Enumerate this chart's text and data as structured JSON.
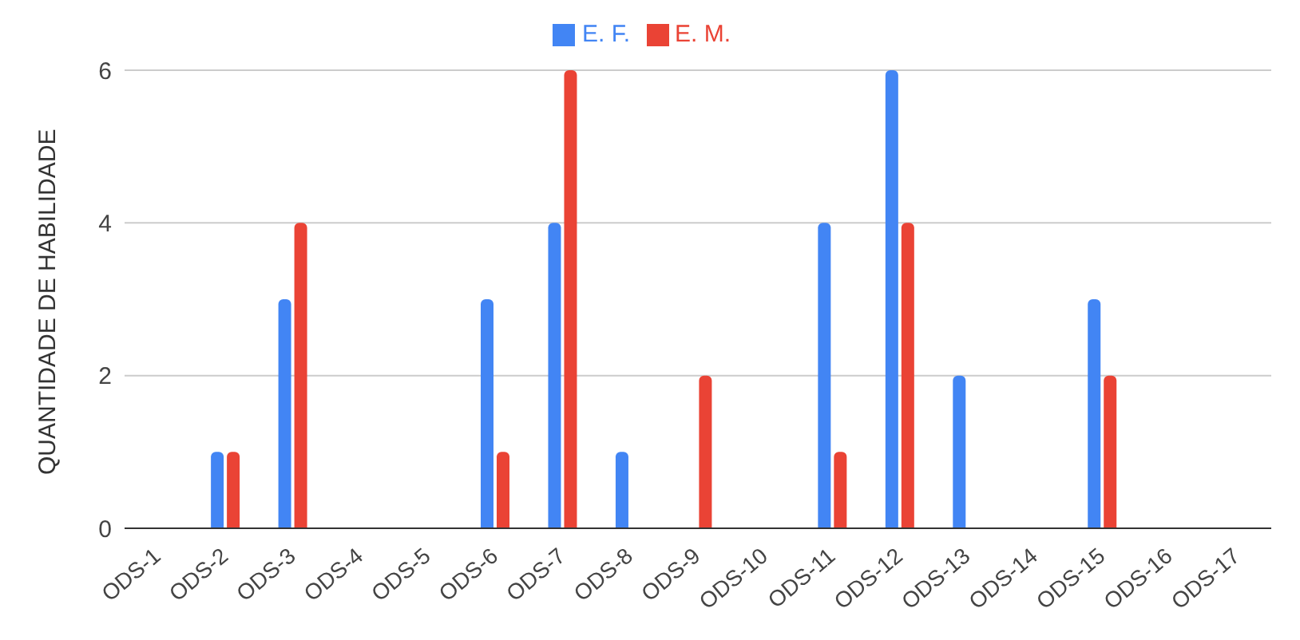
{
  "chart_data": {
    "type": "bar",
    "ylabel": "QUANTIDADE DE HABILIDADE",
    "categories": [
      "ODS-1",
      "ODS-2",
      "ODS-3",
      "ODS-4",
      "ODS-5",
      "ODS-6",
      "ODS-7",
      "ODS-8",
      "ODS-9",
      "ODS-10",
      "ODS-11",
      "ODS-12",
      "ODS-13",
      "ODS-14",
      "ODS-15",
      "ODS-16",
      "ODS-17"
    ],
    "series": [
      {
        "name": "E. F.",
        "color": "#4285f4",
        "values": [
          0,
          1,
          3,
          0,
          0,
          3,
          4,
          1,
          0,
          0,
          4,
          6,
          2,
          0,
          3,
          0,
          0
        ]
      },
      {
        "name": "E. M.",
        "color": "#ea4335",
        "values": [
          0,
          1,
          4,
          0,
          0,
          1,
          6,
          0,
          2,
          0,
          1,
          4,
          0,
          0,
          2,
          0,
          0
        ]
      }
    ],
    "ylim": [
      0,
      6
    ],
    "yticks": [
      0,
      2,
      4,
      6
    ],
    "grid": "y",
    "legend": "top"
  }
}
